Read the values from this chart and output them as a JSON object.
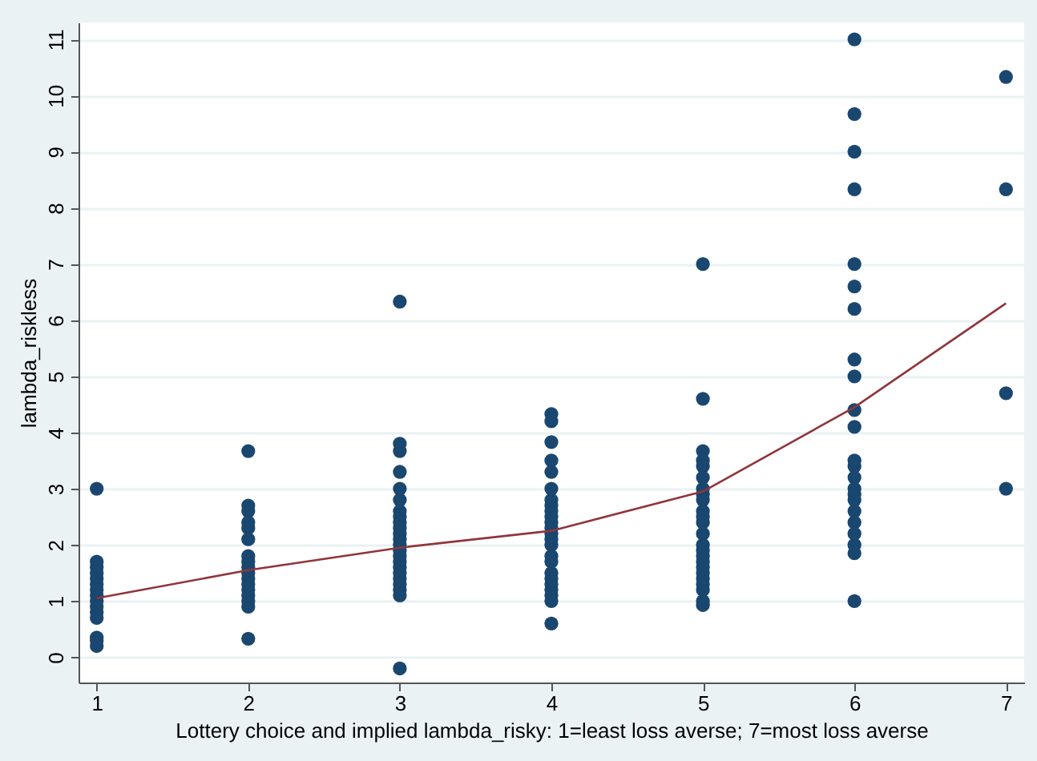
{
  "chart_data": {
    "type": "scatter",
    "xlabel": "Lottery choice and implied lambda_risky: 1=least loss averse; 7=most loss averse",
    "ylabel": "lambda_riskless",
    "xlim": [
      0.88,
      7.12
    ],
    "ylim": [
      -0.45,
      11.3
    ],
    "xticks": [
      1,
      2,
      3,
      4,
      5,
      6,
      7
    ],
    "yticks": [
      0,
      1,
      2,
      3,
      4,
      5,
      6,
      7,
      8,
      9,
      10,
      11
    ],
    "grid": "y",
    "marker": "circle",
    "series": [
      {
        "color": "#1a476f",
        "x": [
          1,
          1,
          1,
          1,
          1,
          1,
          1,
          1,
          1,
          1,
          1,
          1,
          1,
          1,
          1,
          2,
          2,
          2,
          2,
          2,
          2,
          2,
          2,
          2,
          2,
          2,
          2,
          2,
          2,
          2,
          2,
          2,
          3,
          3,
          3,
          3,
          3,
          3,
          3,
          3,
          3,
          3,
          3,
          3,
          3,
          3,
          3,
          3,
          3,
          3,
          3,
          3,
          3,
          3,
          3,
          4,
          4,
          4,
          4,
          4,
          4,
          4,
          4,
          4,
          4,
          4,
          4,
          4,
          4,
          4,
          4,
          4,
          4,
          4,
          4,
          4,
          4,
          4,
          4,
          5,
          5,
          5,
          5,
          5,
          5,
          5,
          5,
          5,
          5,
          5,
          5,
          5,
          5,
          5,
          5,
          5,
          5,
          5,
          5,
          5,
          5,
          5,
          5,
          6,
          6,
          6,
          6,
          6,
          6,
          6,
          6,
          6,
          6,
          6,
          6,
          6,
          6,
          6,
          6,
          6,
          6,
          6,
          6,
          6,
          6,
          6,
          7,
          7,
          7,
          7
        ],
        "values": [
          3.0,
          1.7,
          1.6,
          1.5,
          1.4,
          1.3,
          1.2,
          1.1,
          1.0,
          0.9,
          0.8,
          0.7,
          0.35,
          0.3,
          0.2,
          3.67,
          2.7,
          2.6,
          2.4,
          2.3,
          2.1,
          1.8,
          1.7,
          1.6,
          1.5,
          1.4,
          1.3,
          1.2,
          1.1,
          1.0,
          0.9,
          0.33,
          6.33,
          3.8,
          3.67,
          3.3,
          3.0,
          2.8,
          2.6,
          2.5,
          2.4,
          2.3,
          2.2,
          2.1,
          2.0,
          1.9,
          1.8,
          1.7,
          1.6,
          1.5,
          1.4,
          1.3,
          1.2,
          1.1,
          -0.2,
          4.33,
          4.2,
          3.83,
          3.5,
          3.3,
          3.0,
          2.8,
          2.7,
          2.6,
          2.5,
          2.4,
          2.3,
          2.2,
          2.1,
          2.0,
          1.8,
          1.7,
          1.5,
          1.4,
          1.3,
          1.2,
          1.1,
          1.0,
          0.6,
          7.0,
          4.6,
          3.67,
          3.5,
          3.4,
          3.2,
          3.0,
          2.9,
          2.8,
          2.6,
          2.5,
          2.4,
          2.2,
          2.0,
          1.9,
          1.8,
          1.7,
          1.6,
          1.5,
          1.4,
          1.3,
          1.2,
          1.0,
          0.93,
          11.0,
          9.67,
          9.0,
          8.33,
          7.0,
          6.6,
          6.2,
          5.3,
          5.0,
          4.4,
          4.1,
          3.5,
          3.4,
          3.2,
          3.0,
          2.9,
          2.8,
          2.6,
          2.4,
          2.2,
          2.0,
          1.85,
          1.0,
          10.33,
          8.33,
          4.7,
          3.0
        ]
      },
      {
        "type": "line",
        "marker": "none",
        "color": "#90353b",
        "x": [
          1,
          2,
          3,
          4,
          5,
          6,
          7
        ],
        "values": [
          1.05,
          1.55,
          1.95,
          2.25,
          2.95,
          4.45,
          6.3
        ]
      }
    ]
  }
}
